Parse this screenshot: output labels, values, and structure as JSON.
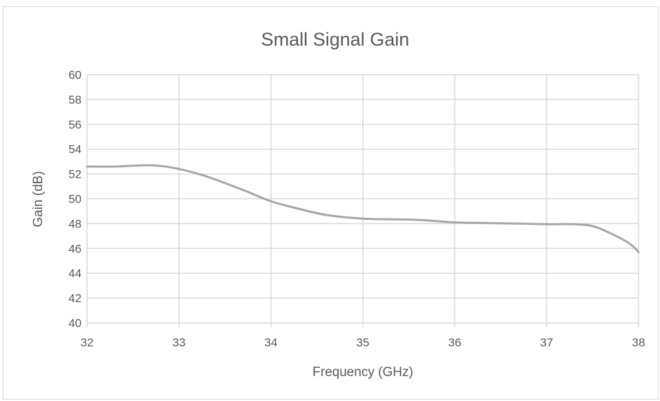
{
  "chart_data": {
    "type": "line",
    "title": "Small Signal Gain",
    "xlabel": "Frequency (GHz)",
    "ylabel": "Gain (dB)",
    "xlim": [
      32,
      38
    ],
    "ylim": [
      40,
      60
    ],
    "x_ticks": [
      "32",
      "33",
      "34",
      "35",
      "36",
      "37",
      "38"
    ],
    "y_ticks": [
      "40",
      "42",
      "44",
      "46",
      "48",
      "50",
      "52",
      "54",
      "56",
      "58",
      "60"
    ],
    "grid": true,
    "line_color": "#a6a6a6",
    "grid_color": "#d9d9d9",
    "series": [
      {
        "x": [
          32.0,
          32.3,
          32.7,
          33.0,
          33.3,
          33.7,
          34.0,
          34.3,
          34.6,
          35.0,
          35.3,
          35.6,
          36.0,
          36.3,
          36.7,
          37.0,
          37.3,
          37.5,
          37.7,
          37.9,
          38.0
        ],
        "y": [
          52.6,
          52.6,
          52.7,
          52.4,
          51.8,
          50.7,
          49.8,
          49.2,
          48.7,
          48.4,
          48.35,
          48.3,
          48.1,
          48.05,
          48.0,
          47.95,
          47.95,
          47.8,
          47.2,
          46.4,
          45.7
        ]
      }
    ]
  }
}
